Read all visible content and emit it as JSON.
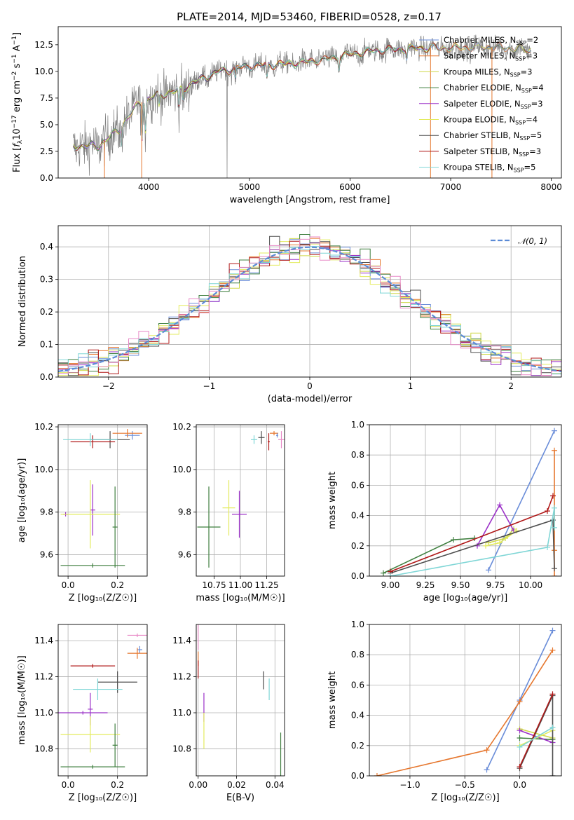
{
  "figure_title": "PLATE=2014, MJD=53460, FIBERID=0528, z=0.17",
  "colors": {
    "Chabrier MILES": "#6a8dd9",
    "Salpeter MILES": "#e6772e",
    "Kroupa MILES": "#cfd94a",
    "Chabrier ELODIE": "#3f7f3f",
    "Salpeter ELODIE": "#9b30c8",
    "Kroupa ELODIE": "#e3eb5e",
    "Chabrier STELIB": "#4d4d4d",
    "Salpeter STELIB": "#b01818",
    "Kroupa STELIB": "#7fd6d6",
    "data": "#808080",
    "normal": "#5b8bd6",
    "pink": "#e88ac7"
  },
  "chart_data": [
    {
      "id": "spectrum",
      "type": "line",
      "xlabel": "wavelength [Angstrom, rest frame]",
      "ylabel_main": "Flux [",
      "ylabel_sym": "f",
      "ylabel_sub": "λ",
      "ylabel_rest": "10",
      "ylabel_exp": "−17",
      "ylabel_unit1": " erg cm",
      "ylabel_exp2": "−2",
      "ylabel_unit2": " s",
      "ylabel_exp3": "−1",
      "ylabel_unit3": " A",
      "ylabel_exp4": "−1",
      "ylabel_close": "]",
      "xlim": [
        3100,
        8100
      ],
      "ylim": [
        0,
        14.2
      ],
      "xticks": [
        "4000",
        "5000",
        "6000",
        "7000",
        "8000"
      ],
      "yticks": [
        "0.0",
        "2.5",
        "5.0",
        "7.5",
        "10.0",
        "12.5"
      ],
      "legend": [
        {
          "imf": "Chabrier MILES",
          "n": "2"
        },
        {
          "imf": "Salpeter MILES",
          "n": "3"
        },
        {
          "imf": "Kroupa MILES",
          "n": "3"
        },
        {
          "imf": "Chabrier ELODIE",
          "n": "4"
        },
        {
          "imf": "Salpeter ELODIE",
          "n": "3"
        },
        {
          "imf": "Kroupa ELODIE",
          "n": "4"
        },
        {
          "imf": "Chabrier STELIB",
          "n": "5"
        },
        {
          "imf": "Salpeter STELIB",
          "n": "3"
        },
        {
          "imf": "Kroupa STELIB",
          "n": "5"
        }
      ],
      "legend_prefix": "N",
      "legend_sub": "SSP",
      "continuum_knots": [
        [
          3250,
          3.0
        ],
        [
          3500,
          3.0
        ],
        [
          3700,
          4.5
        ],
        [
          3900,
          7.0
        ],
        [
          4100,
          7.8
        ],
        [
          4300,
          8.2
        ],
        [
          4500,
          9.2
        ],
        [
          4700,
          10.0
        ],
        [
          5000,
          10.5
        ],
        [
          5500,
          10.8
        ],
        [
          5800,
          11.2
        ],
        [
          6000,
          11.6
        ],
        [
          6300,
          12.0
        ],
        [
          6700,
          12.2
        ],
        [
          7000,
          12.2
        ],
        [
          7400,
          12.3
        ],
        [
          7800,
          12.0
        ]
      ]
    },
    {
      "id": "residuals",
      "type": "histogram",
      "xlabel": "(data-model)/error",
      "ylabel": "Normed distribution",
      "xlim": [
        -2.5,
        2.5
      ],
      "ylim": [
        0,
        0.465
      ],
      "xticks": [
        "−2",
        "−1",
        "0",
        "1",
        "2"
      ],
      "yticks": [
        "0.0",
        "0.1",
        "0.2",
        "0.3",
        "0.4"
      ],
      "legend": "𝒩(0, 1)",
      "bin_width": 0.1
    },
    {
      "id": "age_vs_Z",
      "type": "scatter",
      "xlabel": "Z [log₁₀(Z/Z☉)]",
      "ylabel": "age  [log₁₀(age/yr)]",
      "xlim": [
        -0.04,
        0.32
      ],
      "ylim": [
        9.5,
        10.21
      ],
      "xticks": [
        "0.0",
        "0.2"
      ],
      "yticks": [
        "9.6",
        "9.8",
        "10.0",
        "10.2"
      ],
      "points": [
        {
          "s": "Chabrier MILES",
          "x": 0.26,
          "xe": 0.03,
          "y": 10.16,
          "ye": 0.02
        },
        {
          "s": "Salpeter MILES",
          "x": 0.24,
          "xe": 0.06,
          "y": 10.17,
          "ye": 0.02
        },
        {
          "s": "Chabrier STELIB",
          "x": 0.17,
          "xe": 0.08,
          "y": 10.14,
          "ye": 0.04
        },
        {
          "s": "Salpeter STELIB",
          "x": 0.1,
          "xe": 0.09,
          "y": 10.13,
          "ye": 0.03
        },
        {
          "s": "Kroupa STELIB",
          "x": 0.09,
          "xe": 0.11,
          "y": 10.14,
          "ye": 0.03
        },
        {
          "s": "Salpeter ELODIE",
          "x": 0.1,
          "xe": 0.01,
          "y": 9.81,
          "ye": 0.12
        },
        {
          "s": "Salpeter ELODIE",
          "x": -0.01,
          "xe": 0.01,
          "y": 9.79,
          "ye": 0.01
        },
        {
          "s": "Kroupa ELODIE",
          "x": 0.09,
          "xe": 0.12,
          "y": 9.79,
          "ye": 0.16
        },
        {
          "s": "Chabrier ELODIE",
          "x": 0.19,
          "xe": 0.01,
          "y": 9.73,
          "ye": 0.19
        },
        {
          "s": "Chabrier ELODIE",
          "x": 0.1,
          "xe": 0.13,
          "y": 9.55,
          "ye": 0.01
        }
      ]
    },
    {
      "id": "age_vs_mass",
      "type": "scatter",
      "xlabel": "mass [log₁₀(M/M☉)]",
      "ylabel": "",
      "xlim": [
        10.58,
        11.42
      ],
      "ylim": [
        9.5,
        10.21
      ],
      "xticks": [
        "10.75",
        "11.00",
        "11.25"
      ],
      "yticks": [
        "9.6",
        "9.8",
        "10.0",
        "10.2"
      ],
      "points": [
        {
          "s": "Kroupa STELIB",
          "x": 11.13,
          "xe": 0.03,
          "y": 10.14,
          "ye": 0.02
        },
        {
          "s": "Chabrier STELIB",
          "x": 11.2,
          "xe": 0.03,
          "y": 10.15,
          "ye": 0.03
        },
        {
          "s": "Salpeter STELIB",
          "x": 11.27,
          "xe": 0.01,
          "y": 10.13,
          "ye": 0.04
        },
        {
          "s": "Salpeter MILES",
          "x": 11.32,
          "xe": 0.04,
          "y": 10.17,
          "ye": 0.01
        },
        {
          "s": "Chabrier MILES",
          "x": 11.35,
          "xe": 0.01,
          "y": 10.16,
          "ye": 0.01
        },
        {
          "s": "pink",
          "x": 11.39,
          "xe": 0.03,
          "y": 10.14,
          "ye": 0.04
        },
        {
          "s": "Kroupa ELODIE",
          "x": 10.89,
          "xe": 0.06,
          "y": 9.82,
          "ye": 0.13
        },
        {
          "s": "Salpeter ELODIE",
          "x": 10.99,
          "xe": 0.07,
          "y": 9.79,
          "ye": 0.11
        },
        {
          "s": "Chabrier ELODIE",
          "x": 10.7,
          "xe": 0.11,
          "y": 9.73,
          "ye": 0.19
        }
      ]
    },
    {
      "id": "weight_vs_age",
      "type": "line",
      "xlabel": "age  [log₁₀(age/yr)]",
      "ylabel": "mass weight",
      "xlim": [
        8.85,
        10.22
      ],
      "ylim": [
        0,
        1.0
      ],
      "xticks": [
        "9.00",
        "9.25",
        "9.50",
        "9.75",
        "10.00"
      ],
      "yticks": [
        "0.0",
        "0.2",
        "0.4",
        "0.6",
        "0.8",
        "1.0"
      ],
      "series": [
        {
          "s": "Chabrier MILES",
          "x": [
            9.7,
            10.17
          ],
          "y": [
            0.04,
            0.96
          ]
        },
        {
          "s": "Salpeter MILES",
          "x": [
            10.17,
            10.17,
            10.17
          ],
          "y": [
            0.17,
            0.83,
            0.0
          ]
        },
        {
          "s": "Kroupa MILES",
          "x": [
            9.7,
            9.82,
            9.88
          ],
          "y": [
            0.22,
            0.25,
            0.31
          ]
        },
        {
          "s": "Chabrier ELODIE",
          "x": [
            8.95,
            9.45,
            9.6
          ],
          "y": [
            0.02,
            0.24,
            0.25
          ]
        },
        {
          "s": "Salpeter ELODIE",
          "x": [
            9.62,
            9.78,
            9.88
          ],
          "y": [
            0.2,
            0.47,
            0.3
          ]
        },
        {
          "s": "Kroupa ELODIE",
          "x": [
            9.68,
            9.78,
            9.9
          ],
          "y": [
            0.2,
            0.22,
            0.3
          ]
        },
        {
          "s": "Chabrier STELIB",
          "x": [
            9.0,
            10.16,
            10.17
          ],
          "y": [
            0.02,
            0.37,
            0.05
          ]
        },
        {
          "s": "Salpeter STELIB",
          "x": [
            9.0,
            10.12,
            10.16
          ],
          "y": [
            0.03,
            0.43,
            0.53
          ]
        },
        {
          "s": "Kroupa STELIB",
          "x": [
            9.0,
            10.12,
            10.17,
            10.17
          ],
          "y": [
            0.0,
            0.19,
            0.45,
            0.32
          ]
        }
      ]
    },
    {
      "id": "mass_vs_Z",
      "type": "scatter",
      "xlabel": "Z [log₁₀(Z/Z☉)]",
      "ylabel": "mass [log₁₀(M/M☉)]",
      "xlim": [
        -0.04,
        0.32
      ],
      "ylim": [
        10.65,
        11.49
      ],
      "xticks": [
        "0.0",
        "0.2"
      ],
      "yticks": [
        "10.8",
        "11.0",
        "11.2",
        "11.4"
      ],
      "points": [
        {
          "s": "pink",
          "x": 0.28,
          "xe": 0.04,
          "y": 11.43,
          "ye": 0.01
        },
        {
          "s": "Chabrier MILES",
          "x": 0.29,
          "xe": 0.01,
          "y": 11.35,
          "ye": 0.02
        },
        {
          "s": "Salpeter MILES",
          "x": 0.28,
          "xe": 0.04,
          "y": 11.33,
          "ye": 0.03
        },
        {
          "s": "Salpeter STELIB",
          "x": 0.1,
          "xe": 0.09,
          "y": 11.26,
          "ye": 0.01
        },
        {
          "s": "Chabrier STELIB",
          "x": 0.2,
          "xe": 0.08,
          "y": 11.17,
          "ye": 0.06
        },
        {
          "s": "Kroupa STELIB",
          "x": 0.12,
          "xe": 0.1,
          "y": 11.13,
          "ye": 0.06
        },
        {
          "s": "Salpeter ELODIE",
          "x": 0.09,
          "xe": 0.01,
          "y": 11.02,
          "ye": 0.09
        },
        {
          "s": "Salpeter ELODIE",
          "x": 0.06,
          "xe": 0.1,
          "y": 11.0,
          "ye": 0.01
        },
        {
          "s": "Kroupa ELODIE",
          "x": 0.09,
          "xe": 0.12,
          "y": 10.88,
          "ye": 0.1
        },
        {
          "s": "Chabrier ELODIE",
          "x": 0.19,
          "xe": 0.01,
          "y": 10.82,
          "ye": 0.12
        },
        {
          "s": "Chabrier ELODIE",
          "x": 0.1,
          "xe": 0.13,
          "y": 10.7,
          "ye": 0.01
        }
      ]
    },
    {
      "id": "mass_vs_ebv",
      "type": "scatter",
      "xlabel": "E(B-V)",
      "ylabel": "",
      "xlim": [
        -0.001,
        0.045
      ],
      "ylim": [
        10.65,
        11.49
      ],
      "xticks": [
        "0.00",
        "0.02",
        "0.04"
      ],
      "yticks": [
        "10.8",
        "11.0",
        "11.2",
        "11.4"
      ],
      "points": [
        {
          "s": "pink",
          "x": 0.0,
          "y": 11.42,
          "ye": 0.07
        },
        {
          "s": "Salpeter MILES",
          "x": 0.0,
          "y": 11.3,
          "ye": 0.04
        },
        {
          "s": "Salpeter STELIB",
          "x": 0.0,
          "y": 11.24,
          "ye": 0.05
        },
        {
          "s": "Chabrier STELIB",
          "x": 0.034,
          "y": 11.18,
          "ye": 0.05
        },
        {
          "s": "Kroupa STELIB",
          "x": 0.037,
          "y": 11.13,
          "ye": 0.06
        },
        {
          "s": "Salpeter ELODIE",
          "x": 0.003,
          "y": 11.03,
          "ye": 0.08
        },
        {
          "s": "Kroupa ELODIE",
          "x": 0.003,
          "y": 10.9,
          "ye": 0.1
        },
        {
          "s": "Chabrier ELODIE",
          "x": 0.043,
          "y": 10.77,
          "ye": 0.12
        }
      ]
    },
    {
      "id": "weight_vs_Z",
      "type": "line",
      "xlabel": "Z [log₁₀(Z/Z☉)]",
      "ylabel": "mass weight",
      "xlim": [
        -1.37,
        0.38
      ],
      "ylim": [
        0,
        1.0
      ],
      "xticks": [
        "−1.0",
        "−0.5",
        "0.0"
      ],
      "yticks": [
        "0.0",
        "0.2",
        "0.4",
        "0.6",
        "0.8",
        "1.0"
      ],
      "series": [
        {
          "s": "Chabrier MILES",
          "x": [
            -0.3,
            0.0,
            0.3
          ],
          "y": [
            0.04,
            0.5,
            0.96
          ]
        },
        {
          "s": "Salpeter MILES",
          "x": [
            -1.3,
            -0.3,
            0.0,
            0.3
          ],
          "y": [
            0.0,
            0.17,
            0.49,
            0.83
          ]
        },
        {
          "s": "Kroupa MILES",
          "x": [
            0.0,
            0.3
          ],
          "y": [
            0.31,
            0.25
          ]
        },
        {
          "s": "Chabrier ELODIE",
          "x": [
            0.0,
            0.3
          ],
          "y": [
            0.25,
            0.24
          ]
        },
        {
          "s": "Salpeter ELODIE",
          "x": [
            0.0,
            0.3
          ],
          "y": [
            0.3,
            0.22
          ]
        },
        {
          "s": "Kroupa ELODIE",
          "x": [
            0.0,
            0.3
          ],
          "y": [
            0.2,
            0.3
          ]
        },
        {
          "s": "Chabrier STELIB",
          "x": [
            0.0,
            0.3,
            0.3
          ],
          "y": [
            0.05,
            0.53,
            0.0
          ]
        },
        {
          "s": "Salpeter STELIB",
          "x": [
            0.0,
            0.3
          ],
          "y": [
            0.06,
            0.54
          ]
        },
        {
          "s": "Kroupa STELIB",
          "x": [
            0.0,
            0.3
          ],
          "y": [
            0.19,
            0.32
          ]
        }
      ]
    }
  ]
}
